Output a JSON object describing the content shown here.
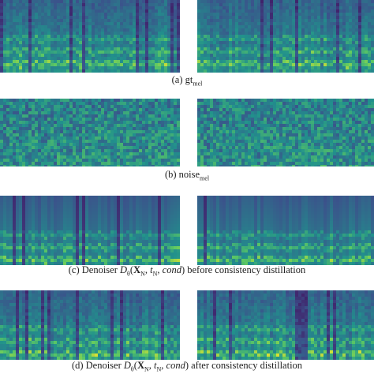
{
  "figure": {
    "panels": [
      {
        "caption": [
          {
            "text": "(a)  "
          },
          {
            "text": "gt"
          },
          {
            "text": "mel",
            "style": "sub"
          }
        ]
      },
      {
        "caption": [
          {
            "text": "(b) "
          },
          {
            "text": "noise"
          },
          {
            "text": "mel",
            "style": "sub"
          }
        ]
      },
      {
        "caption": [
          {
            "text": "(c) Denoiser "
          },
          {
            "text": "D",
            "style": "italic"
          },
          {
            "text": "θ",
            "style": "sub"
          },
          {
            "text": "("
          },
          {
            "text": "X",
            "style": "bold"
          },
          {
            "text": "N",
            "style": "sub"
          },
          {
            "text": ", "
          },
          {
            "text": "t",
            "style": "italic"
          },
          {
            "text": "N",
            "style": "sub"
          },
          {
            "text": ", "
          },
          {
            "text": "cond",
            "style": "italic"
          },
          {
            "text": ") before consistency distillation"
          }
        ]
      },
      {
        "caption": [
          {
            "text": "(d) Denoiser "
          },
          {
            "text": "D",
            "style": "italic"
          },
          {
            "text": "θ",
            "style": "sub"
          },
          {
            "text": "("
          },
          {
            "text": "X",
            "style": "bold"
          },
          {
            "text": "N",
            "style": "sub"
          },
          {
            "text": ", "
          },
          {
            "text": "t",
            "style": "italic"
          },
          {
            "text": "N",
            "style": "sub"
          },
          {
            "text": ", "
          },
          {
            "text": "cond",
            "style": "italic"
          },
          {
            "text": ") after consistency distillation"
          }
        ]
      }
    ]
  }
}
